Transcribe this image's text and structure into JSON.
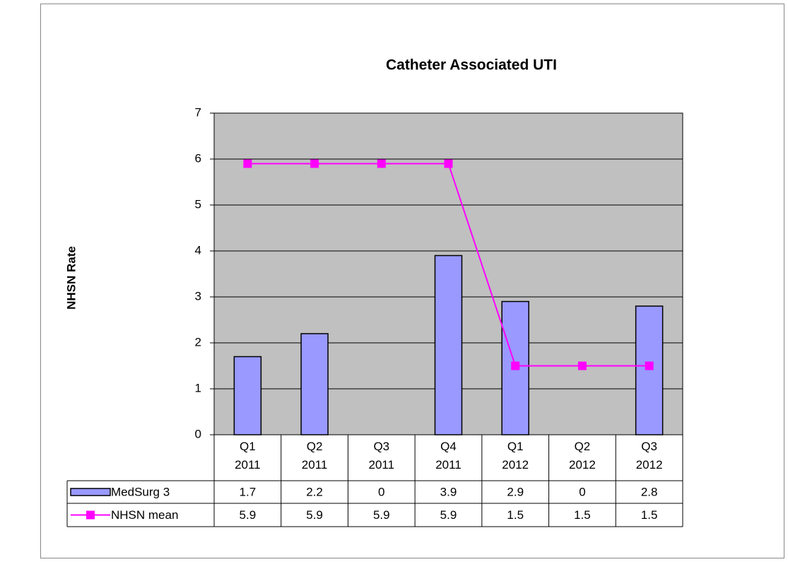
{
  "chart_data": {
    "type": "bar",
    "title": "Catheter Associated UTI",
    "y_label": "NHSN Rate",
    "categories": [
      "Q1 2011",
      "Q2 2011",
      "Q3 2011",
      "Q4 2011",
      "Q1 2012",
      "Q2 2012",
      "Q3 2012"
    ],
    "series": [
      {
        "name": "MedSurg 3",
        "type": "bar",
        "color": "#9999ff",
        "values": [
          1.7,
          2.2,
          0,
          3.9,
          2.9,
          0,
          2.8
        ]
      },
      {
        "name": "NHSN mean",
        "type": "line",
        "color": "#ff00ff",
        "values": [
          5.9,
          5.9,
          5.9,
          5.9,
          1.5,
          1.5,
          1.5
        ]
      }
    ],
    "ylim": [
      0,
      7
    ],
    "yticks": [
      0,
      1,
      2,
      3,
      4,
      5,
      6,
      7
    ],
    "grid": true,
    "plot_background": "#c0c0c0",
    "data_table": true
  }
}
